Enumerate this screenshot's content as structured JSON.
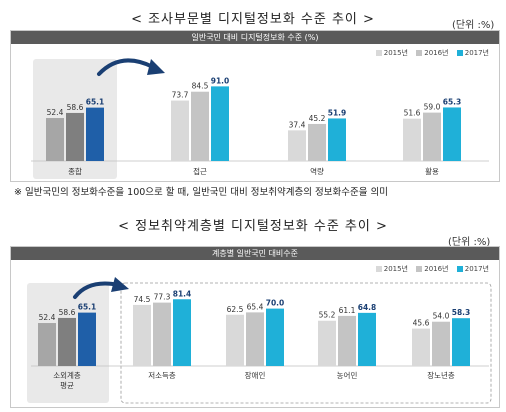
{
  "top": {
    "title": "< 조사부문별 디지털정보화 수준 추이 >",
    "unit": "(단위 :%)",
    "chart_data": {
      "type": "bar",
      "title": "일반국민 대비 디지털정보화 수준 (%)",
      "categories": [
        "종합",
        "접근",
        "역량",
        "활용"
      ],
      "series": [
        {
          "name": "2015년",
          "values": [
            52.4,
            73.7,
            37.4,
            51.6
          ]
        },
        {
          "name": "2016년",
          "values": [
            58.6,
            84.5,
            45.2,
            59.0
          ]
        },
        {
          "name": "2017년",
          "values": [
            65.1,
            91.0,
            51.9,
            65.3
          ]
        }
      ],
      "ylim": [
        0,
        100
      ]
    },
    "note": "※ 일반국민의 정보화수준을 100으로 할 때, 일반국민 대비 정보취약계층의 정보화수준을 의미"
  },
  "bottom": {
    "title": "< 정보취약계층별 디지털정보화 수준 추이 >",
    "unit": "(단위 :%)",
    "chart_data": {
      "type": "bar",
      "title": "계층별 일반국민 대비수준",
      "categories": [
        "소외계층 평균",
        "저소득층",
        "장애인",
        "농어민",
        "장노년층"
      ],
      "series": [
        {
          "name": "2015년",
          "values": [
            52.4,
            74.5,
            62.5,
            55.2,
            45.6
          ]
        },
        {
          "name": "2016년",
          "values": [
            58.6,
            77.3,
            65.4,
            61.1,
            54.0
          ]
        },
        {
          "name": "2017년",
          "values": [
            65.1,
            81.4,
            70.0,
            64.8,
            58.3
          ]
        }
      ],
      "ylim": [
        0,
        100
      ]
    }
  },
  "colors": {
    "focus": [
      "#a6a6a6",
      "#7f7f7f",
      "#1f5fa8"
    ],
    "normal": [
      "#d9d9d9",
      "#c4c4c4",
      "#1fb0d8"
    ],
    "arrow": "#1a3f73"
  }
}
